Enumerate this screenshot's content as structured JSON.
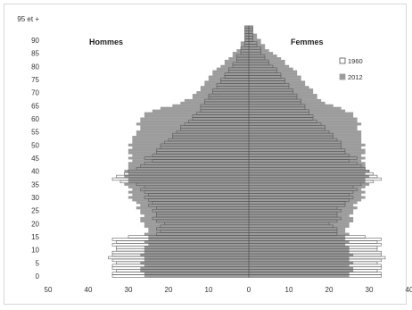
{
  "chart_data": {
    "type": "bar",
    "orientation": "horizontal-pyramid",
    "left_label": "Hommes",
    "right_label": "Femmes",
    "y_ticks": [
      "0",
      "5",
      "10",
      "15",
      "20",
      "25",
      "30",
      "35",
      "40",
      "45",
      "50",
      "55",
      "60",
      "65",
      "70",
      "75",
      "80",
      "85",
      "90",
      "95 et +"
    ],
    "x_ticks": [
      "50",
      "40",
      "30",
      "20",
      "10",
      "0",
      "10",
      "20",
      "30",
      "40"
    ],
    "xlim": [
      -50,
      40
    ],
    "ylim": [
      0,
      95
    ],
    "grid": false,
    "legend": {
      "position": "top-right",
      "items": [
        {
          "name": "1960",
          "style": "outline"
        },
        {
          "name": "2012",
          "style": "filled"
        }
      ]
    },
    "colors": {
      "s2012": "#9c9c9c",
      "s1960_stroke": "#555555",
      "s1960_fill": "#ffffff"
    },
    "ages": [
      0,
      1,
      2,
      3,
      4,
      5,
      6,
      7,
      8,
      9,
      10,
      11,
      12,
      13,
      14,
      15,
      16,
      17,
      18,
      19,
      20,
      21,
      22,
      23,
      24,
      25,
      26,
      27,
      28,
      29,
      30,
      31,
      32,
      33,
      34,
      35,
      36,
      37,
      38,
      39,
      40,
      41,
      42,
      43,
      44,
      45,
      46,
      47,
      48,
      49,
      50,
      51,
      52,
      53,
      54,
      55,
      56,
      57,
      58,
      59,
      60,
      61,
      62,
      63,
      64,
      65,
      66,
      67,
      68,
      69,
      70,
      71,
      72,
      73,
      74,
      75,
      76,
      77,
      78,
      79,
      80,
      81,
      82,
      83,
      84,
      85,
      86,
      87,
      88,
      89,
      90,
      91,
      92,
      93,
      94,
      95
    ],
    "series": [
      {
        "name": "2012",
        "men": [
          26,
          26,
          27,
          27,
          26,
          27,
          26,
          26,
          27,
          26,
          26,
          26,
          25,
          26,
          25,
          25,
          26,
          25,
          25,
          26,
          26,
          27,
          27,
          26,
          27,
          27,
          28,
          27,
          28,
          29,
          30,
          29,
          30,
          29,
          30,
          31,
          30,
          30,
          31,
          30,
          31,
          30,
          30,
          30,
          29,
          30,
          29,
          30,
          30,
          29,
          30,
          29,
          29,
          29,
          28,
          28,
          27,
          27,
          28,
          27,
          27,
          26,
          26,
          24,
          22,
          19,
          17,
          16,
          14,
          14,
          13,
          12,
          12,
          11,
          11,
          10,
          10,
          9,
          9,
          8,
          7,
          6,
          6,
          5,
          4,
          4,
          3,
          2,
          2,
          2,
          1,
          1,
          1,
          1,
          1,
          1
        ],
        "women": [
          25,
          25,
          26,
          26,
          25,
          26,
          25,
          25,
          26,
          25,
          25,
          25,
          24,
          25,
          24,
          24,
          25,
          24,
          24,
          25,
          25,
          26,
          26,
          25,
          26,
          26,
          27,
          26,
          27,
          28,
          29,
          28,
          29,
          28,
          29,
          30,
          29,
          29,
          30,
          29,
          30,
          29,
          29,
          29,
          28,
          29,
          28,
          29,
          29,
          28,
          29,
          28,
          28,
          28,
          28,
          28,
          27,
          27,
          28,
          27,
          27,
          26,
          26,
          24,
          23,
          21,
          19,
          18,
          17,
          17,
          16,
          16,
          15,
          14,
          14,
          13,
          13,
          12,
          12,
          11,
          10,
          9,
          9,
          8,
          7,
          6,
          5,
          4,
          4,
          3,
          3,
          2,
          2,
          1,
          1,
          1
        ]
      },
      {
        "name": "1960",
        "men": [
          34,
          34,
          33,
          34,
          34,
          33,
          34,
          35,
          34,
          34,
          33,
          33,
          34,
          33,
          34,
          30,
          23,
          22,
          23,
          22,
          21,
          23,
          24,
          23,
          23,
          24,
          23,
          25,
          24,
          25,
          26,
          25,
          26,
          27,
          26,
          28,
          32,
          34,
          33,
          31,
          30,
          28,
          27,
          26,
          24,
          26,
          24,
          23,
          23,
          22,
          22,
          21,
          20,
          19,
          19,
          18,
          17,
          17,
          16,
          15,
          14,
          14,
          13,
          12,
          12,
          12,
          11,
          11,
          10,
          10,
          9,
          9,
          8,
          8,
          7,
          7,
          6,
          6,
          5,
          5,
          4,
          4,
          3,
          3,
          3,
          2,
          2,
          2,
          1,
          1,
          1,
          1,
          1,
          1,
          1,
          1
        ],
        "women": [
          33,
          33,
          32,
          33,
          33,
          32,
          33,
          34,
          33,
          33,
          32,
          32,
          33,
          32,
          33,
          29,
          22,
          22,
          22,
          21,
          20,
          22,
          23,
          22,
          22,
          23,
          22,
          24,
          24,
          25,
          26,
          25,
          26,
          27,
          26,
          28,
          31,
          33,
          32,
          31,
          30,
          29,
          28,
          27,
          25,
          27,
          25,
          24,
          24,
          23,
          23,
          23,
          22,
          21,
          21,
          20,
          19,
          19,
          18,
          17,
          16,
          16,
          15,
          15,
          14,
          14,
          13,
          13,
          12,
          12,
          11,
          11,
          10,
          10,
          9,
          9,
          8,
          8,
          7,
          7,
          6,
          5,
          5,
          4,
          4,
          3,
          3,
          3,
          2,
          2,
          1,
          1,
          1,
          1,
          1,
          1
        ]
      }
    ]
  }
}
